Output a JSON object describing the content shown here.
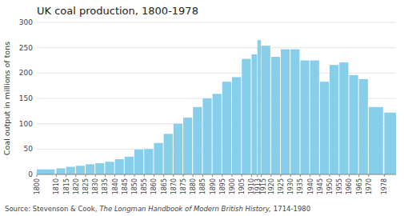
{
  "chart_data": {
    "type": "bar",
    "title": "UK coal production, 1800-1978",
    "y_label": "Coal output in millions of tons",
    "annotations": [
      "Source: Stevenson & Cook,",
      "The Longman Handbook of Modern British History,",
      "1714-1980"
    ],
    "x": [
      1800,
      1810,
      1815,
      1820,
      1825,
      1830,
      1835,
      1840,
      1845,
      1850,
      1855,
      1860,
      1865,
      1870,
      1875,
      1880,
      1885,
      1890,
      1895,
      1900,
      1905,
      1910,
      1913,
      1915,
      1920,
      1925,
      1930,
      1935,
      1940,
      1945,
      1950,
      1955,
      1960,
      1965,
      1970,
      1978
    ],
    "values": [
      10,
      12,
      15,
      17,
      20,
      22,
      25,
      30,
      35,
      49,
      50,
      62,
      80,
      100,
      112,
      133,
      150,
      159,
      183,
      192,
      228,
      237,
      265,
      254,
      232,
      247,
      247,
      225,
      225,
      183,
      216,
      221,
      196,
      188,
      133,
      122
    ],
    "color": "#87CEEB",
    "xlim": [
      1800,
      1984
    ],
    "xticks": [
      1800,
      1810,
      1815,
      1820,
      1825,
      1830,
      1835,
      1840,
      1845,
      1850,
      1855,
      1860,
      1865,
      1870,
      1875,
      1880,
      1885,
      1890,
      1895,
      1900,
      1905,
      1910,
      1913,
      1915,
      1920,
      1925,
      1930,
      1935,
      1940,
      1945,
      1950,
      1955,
      1960,
      1965,
      1970,
      1978
    ],
    "ylim": [
      0,
      300
    ],
    "yticks": [
      0,
      50,
      100,
      150,
      200,
      250,
      300
    ],
    "grid": true
  }
}
